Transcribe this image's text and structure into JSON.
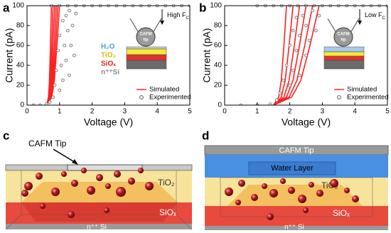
{
  "panel_labels": [
    "a",
    "b",
    "c",
    "d"
  ],
  "chart_data": [
    {
      "type": "line",
      "xlabel": "Voltage (V)",
      "ylabel": "Current (pA)",
      "xlim": [
        0,
        5
      ],
      "ylim": [
        0,
        100
      ],
      "xticks": [
        0,
        1,
        2,
        3,
        4,
        5
      ],
      "yticks": [
        0,
        20,
        40,
        60,
        80,
        100
      ],
      "legend": "lower right",
      "series": [
        {
          "name": "Simulated",
          "type": "line",
          "color": "#ff2020",
          "x": [
            0.6,
            0.66,
            0.69,
            0.72,
            0.75,
            null,
            0.6,
            0.68,
            0.72,
            0.76,
            0.8,
            null,
            0.6,
            0.7,
            0.75,
            0.8,
            0.85,
            null,
            0.6,
            0.72,
            0.78,
            0.84,
            0.9,
            null,
            0.6,
            0.74,
            0.81,
            0.88,
            0.95,
            null,
            0.6,
            0.76,
            0.84,
            0.92,
            1.0
          ],
          "values": [
            0,
            8,
            25,
            60,
            100,
            null,
            0,
            8,
            25,
            60,
            100,
            null,
            0,
            8,
            25,
            60,
            100,
            null,
            0,
            8,
            25,
            60,
            100,
            null,
            0,
            8,
            25,
            60,
            100,
            null,
            0,
            8,
            25,
            60,
            100
          ]
        },
        {
          "name": "Experimented",
          "type": "scatter",
          "color": "#6e6e6e",
          "x": [
            0.2,
            0.4,
            0.6,
            0.7,
            0.8,
            0.85,
            0.9,
            0.95,
            1.0,
            1.0,
            1.05,
            1.1,
            1.1,
            1.15,
            1.2,
            1.2,
            1.25,
            1.3,
            1.3,
            1.35,
            1.4,
            1.45,
            1.5,
            0.75,
            1.0,
            1.25,
            1.5,
            1.75,
            2.0,
            2.25,
            2.5,
            2.75,
            3.0,
            3.25,
            3.5,
            3.75,
            4.0,
            4.25,
            4.5,
            4.75,
            5.0
          ],
          "values": [
            0,
            0,
            1,
            3,
            8,
            20,
            35,
            55,
            15,
            70,
            40,
            85,
            25,
            60,
            45,
            90,
            75,
            30,
            95,
            60,
            80,
            50,
            92,
            100,
            100,
            100,
            100,
            100,
            100,
            100,
            100,
            100,
            100,
            100,
            100,
            100,
            100,
            100,
            100,
            100,
            100
          ]
        }
      ],
      "inset": {
        "force": "High F",
        "force_sub": "C",
        "tip": [
          "CAFM",
          "tip"
        ],
        "layers": [
          {
            "label": "H₂O",
            "color": "#4a9fe0"
          },
          {
            "label": "TiO₂",
            "color": "#c9c400"
          },
          {
            "label": "SiOₓ",
            "color": "#e02020"
          },
          {
            "label": "n⁺⁺Si",
            "color": "#8a8a8a"
          }
        ]
      }
    },
    {
      "type": "line",
      "xlabel": "Voltage (V)",
      "ylabel": "Current (pA)",
      "xlim": [
        0,
        5
      ],
      "ylim": [
        0,
        100
      ],
      "xticks": [
        0,
        1,
        2,
        3,
        4,
        5
      ],
      "yticks": [
        0,
        20,
        40,
        60,
        80,
        100
      ],
      "legend": "lower right",
      "series": [
        {
          "name": "Simulated",
          "type": "line",
          "color": "#ff2020",
          "x": [
            1.5,
            1.66,
            1.74,
            1.82,
            1.9,
            null,
            1.5,
            1.74,
            1.86,
            1.98,
            2.1,
            null,
            1.5,
            1.82,
            1.98,
            2.14,
            2.3,
            null,
            1.5,
            1.9,
            2.1,
            2.3,
            2.5,
            null,
            1.5,
            1.98,
            2.22,
            2.46,
            2.7,
            null,
            1.5,
            2.06,
            2.34,
            2.62,
            2.9
          ],
          "values": [
            0,
            8,
            25,
            60,
            100,
            null,
            0,
            8,
            25,
            60,
            100,
            null,
            0,
            8,
            25,
            60,
            100,
            null,
            0,
            8,
            25,
            60,
            100,
            null,
            0,
            8,
            25,
            60,
            100,
            null,
            0,
            8,
            25,
            60,
            100
          ]
        },
        {
          "name": "Experimented",
          "type": "scatter",
          "color": "#6e6e6e",
          "x": [
            0.5,
            1.0,
            1.4,
            1.6,
            1.7,
            1.8,
            1.9,
            2.0,
            2.0,
            2.1,
            2.1,
            2.2,
            2.2,
            2.3,
            2.3,
            2.4,
            2.5,
            2.5,
            2.6,
            2.7,
            2.8,
            2.9,
            1.0,
            1.25,
            1.5,
            1.75,
            2.0,
            2.25,
            2.5,
            2.75,
            3.0,
            3.25,
            3.5,
            3.75,
            4.0,
            4.25,
            4.5,
            4.75,
            5.0
          ],
          "values": [
            0,
            0,
            1,
            5,
            12,
            25,
            40,
            20,
            60,
            75,
            35,
            55,
            88,
            30,
            70,
            90,
            50,
            80,
            65,
            95,
            75,
            90,
            100,
            100,
            100,
            100,
            100,
            100,
            100,
            100,
            100,
            100,
            100,
            100,
            100,
            100,
            100,
            100,
            100
          ]
        }
      ],
      "inset": {
        "force": "Low F",
        "force_sub": "C",
        "tip": [
          "CAFM",
          "tip"
        ]
      }
    }
  ],
  "diagrams": [
    {
      "tip": "CAFM Tip",
      "tio2": "TiO₂",
      "siox": "SiOₓ",
      "substrate": "n⁺⁺ Si"
    },
    {
      "tip": "CAFM Tip",
      "water": "Water Layer",
      "tio2": "TiO₂",
      "siox": "SiOₓ",
      "substrate": "n⁺⁺ Si"
    }
  ]
}
